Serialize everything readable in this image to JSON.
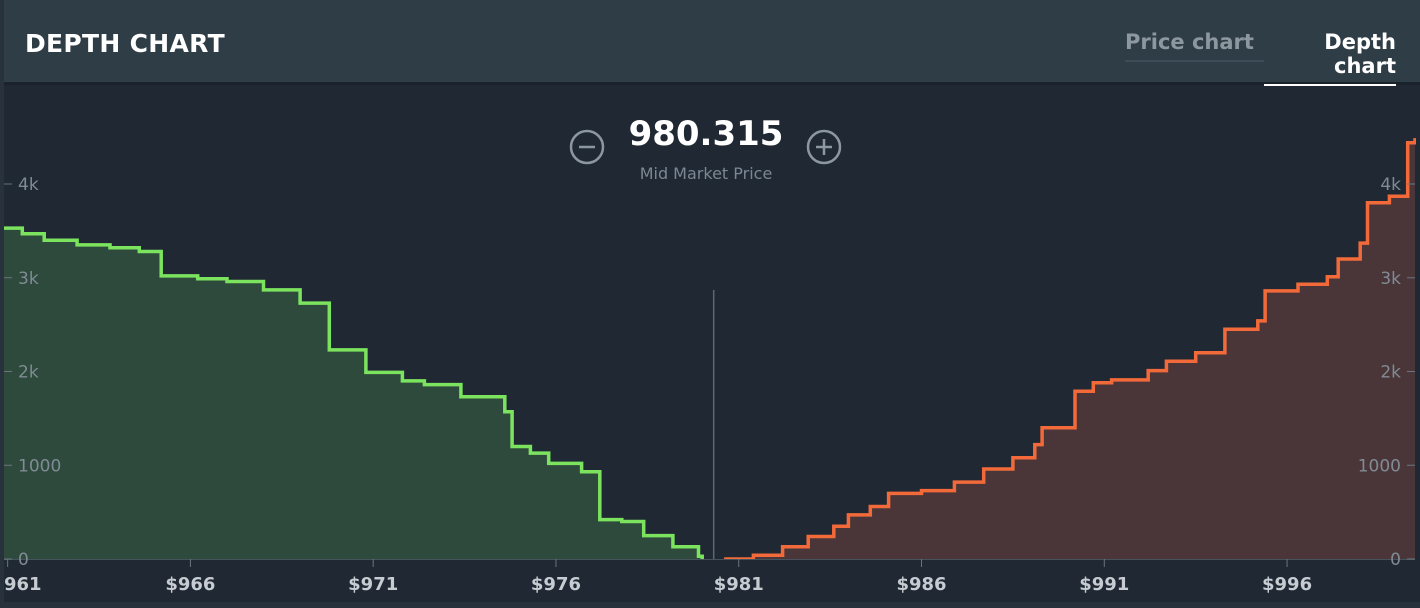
{
  "header": {
    "title": "DEPTH CHART",
    "tabs": [
      {
        "label": "Price chart",
        "active": false
      },
      {
        "label": "Depth chart",
        "active": true
      }
    ]
  },
  "mid_market": {
    "value": "980.315",
    "label": "Mid Market Price"
  },
  "icons": {
    "zoom_out": "minus-circle-icon",
    "zoom_in": "plus-circle-icon"
  },
  "colors": {
    "bids_line": "#7be35d",
    "bids_fill": "#2e4a3c",
    "asks_line": "#f26a3a",
    "asks_fill": "#4a3638"
  },
  "chart_data": {
    "type": "area",
    "x_ticks": [
      {
        "value": 961,
        "label": "961"
      },
      {
        "value": 966,
        "label": "$966"
      },
      {
        "value": 971,
        "label": "$971"
      },
      {
        "value": 976,
        "label": "$976"
      },
      {
        "value": 981,
        "label": "$981"
      },
      {
        "value": 986,
        "label": "$986"
      },
      {
        "value": 991,
        "label": "$991"
      },
      {
        "value": 996,
        "label": "$996"
      }
    ],
    "y_ticks": [
      {
        "value": 0,
        "label": "0"
      },
      {
        "value": 1000,
        "label": "1000"
      },
      {
        "value": 2000,
        "label": "2k"
      },
      {
        "value": 3000,
        "label": "3k"
      },
      {
        "value": 4000,
        "label": "4k"
      }
    ],
    "xlim": [
      960.9,
      999.5
    ],
    "ylim": [
      0,
      4000
    ],
    "mid_price": 980.315,
    "series": [
      {
        "side": "bids",
        "points": [
          [
            960.9,
            3530
          ],
          [
            961.4,
            3470
          ],
          [
            962.0,
            3400
          ],
          [
            962.9,
            3350
          ],
          [
            963.8,
            3320
          ],
          [
            964.6,
            3280
          ],
          [
            965.2,
            3230
          ],
          [
            965.2,
            3020
          ],
          [
            966.2,
            2990
          ],
          [
            967.0,
            2960
          ],
          [
            968.0,
            2870
          ],
          [
            969.0,
            2730
          ],
          [
            969.8,
            2580
          ],
          [
            969.8,
            2230
          ],
          [
            970.8,
            2130
          ],
          [
            970.8,
            1990
          ],
          [
            971.8,
            1900
          ],
          [
            972.4,
            1860
          ],
          [
            973.4,
            1730
          ],
          [
            974.6,
            1570
          ],
          [
            974.8,
            1200
          ],
          [
            975.3,
            1130
          ],
          [
            975.8,
            1020
          ],
          [
            976.7,
            930
          ],
          [
            977.2,
            880
          ],
          [
            977.2,
            420
          ],
          [
            977.8,
            400
          ],
          [
            978.4,
            250
          ],
          [
            979.2,
            130
          ],
          [
            979.9,
            30
          ],
          [
            980.0,
            0
          ]
        ]
      },
      {
        "side": "asks",
        "points": [
          [
            980.6,
            0
          ],
          [
            981.4,
            40
          ],
          [
            982.2,
            130
          ],
          [
            982.9,
            240
          ],
          [
            983.6,
            350
          ],
          [
            984.0,
            470
          ],
          [
            984.6,
            560
          ],
          [
            985.1,
            700
          ],
          [
            986.0,
            730
          ],
          [
            986.9,
            820
          ],
          [
            987.7,
            960
          ],
          [
            988.5,
            1080
          ],
          [
            989.1,
            1220
          ],
          [
            989.3,
            1400
          ],
          [
            990.2,
            1400
          ],
          [
            990.2,
            1790
          ],
          [
            990.7,
            1880
          ],
          [
            991.2,
            1910
          ],
          [
            992.2,
            2010
          ],
          [
            992.7,
            2110
          ],
          [
            993.5,
            2200
          ],
          [
            994.3,
            2450
          ],
          [
            995.2,
            2540
          ],
          [
            995.4,
            2860
          ],
          [
            996.3,
            2930
          ],
          [
            997.1,
            3010
          ],
          [
            997.4,
            3200
          ],
          [
            998.0,
            3370
          ],
          [
            998.2,
            3800
          ],
          [
            998.8,
            3870
          ],
          [
            999.3,
            4440
          ],
          [
            999.5,
            4490
          ]
        ]
      }
    ]
  }
}
